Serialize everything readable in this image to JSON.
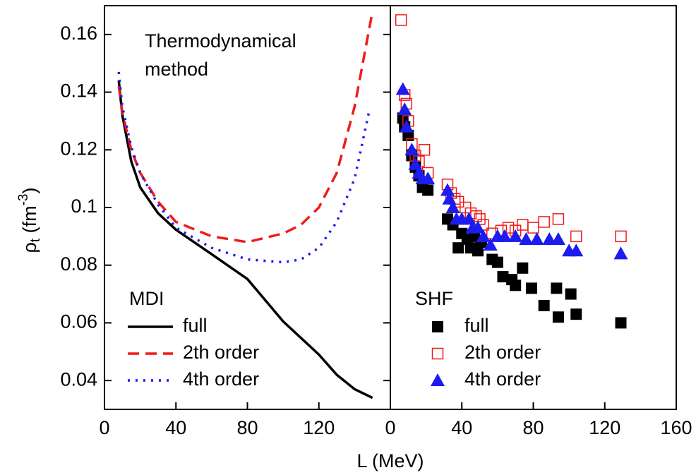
{
  "chart_data": [
    {
      "type": "line",
      "annotation": [
        "Thermodynamical",
        "method"
      ],
      "xlabel": "L (MeV)",
      "ylabel": [
        "ρ",
        "t",
        " (fm",
        "-3",
        ")"
      ],
      "legend_title": "MDI",
      "legend": "lower left",
      "xlim": [
        0,
        160
      ],
      "xticks": [
        0,
        40,
        80,
        120
      ],
      "ylim": [
        0.03,
        0.17
      ],
      "yticks": [
        0.04,
        0.06,
        0.08,
        0.1,
        0.12,
        0.14,
        0.16
      ],
      "series": [
        {
          "name": "full",
          "color": "#000000",
          "linestyle": "solid",
          "x": [
            8,
            10,
            15,
            20,
            30,
            40,
            60,
            80,
            100,
            120,
            130,
            140,
            150
          ],
          "values": [
            0.144,
            0.132,
            0.116,
            0.107,
            0.098,
            0.0923,
            0.0838,
            0.0752,
            0.0605,
            0.049,
            0.042,
            0.037,
            0.034
          ]
        },
        {
          "name": "2th order",
          "color": "#ee1c1c",
          "linestyle": "dashed",
          "x": [
            8,
            10,
            15,
            20,
            30,
            40,
            60,
            80,
            100,
            110,
            120,
            130,
            140,
            150
          ],
          "values": [
            0.142,
            0.133,
            0.12,
            0.112,
            0.102,
            0.095,
            0.09,
            0.088,
            0.091,
            0.094,
            0.1,
            0.112,
            0.135,
            0.168
          ]
        },
        {
          "name": "4th order",
          "color": "#1c1cee",
          "linestyle": "dotted",
          "x": [
            8,
            10,
            15,
            20,
            30,
            40,
            60,
            80,
            100,
            110,
            120,
            130,
            140,
            148
          ],
          "values": [
            0.147,
            0.135,
            0.121,
            0.112,
            0.101,
            0.093,
            0.086,
            0.082,
            0.081,
            0.082,
            0.086,
            0.095,
            0.11,
            0.133
          ]
        }
      ]
    },
    {
      "type": "scatter",
      "legend_title": "SHF",
      "legend": "lower left",
      "xlim": [
        0,
        160
      ],
      "xticks": [
        0,
        40,
        80,
        120,
        160
      ],
      "ylim": [
        0.03,
        0.17
      ],
      "series": [
        {
          "name": "full",
          "color": "#000000",
          "marker": "square-filled",
          "x": [
            7,
            8,
            10,
            12,
            14,
            16,
            18,
            21,
            32,
            35,
            38,
            40,
            43,
            45,
            47,
            49,
            51,
            57,
            60,
            63,
            68,
            70,
            74,
            79,
            86,
            93,
            94,
            101,
            104,
            129
          ],
          "values": [
            0.131,
            0.128,
            0.125,
            0.118,
            0.114,
            0.111,
            0.107,
            0.106,
            0.096,
            0.094,
            0.086,
            0.091,
            0.089,
            0.086,
            0.09,
            0.085,
            0.088,
            0.082,
            0.081,
            0.076,
            0.075,
            0.073,
            0.079,
            0.072,
            0.066,
            0.072,
            0.062,
            0.07,
            0.063,
            0.06
          ]
        },
        {
          "name": "2th order",
          "color": "#ee1c1c",
          "marker": "square-open",
          "x": [
            6,
            8,
            9,
            10,
            12,
            14,
            16,
            19,
            21,
            32,
            34,
            36,
            38,
            42,
            45,
            48,
            50,
            52,
            57,
            62,
            66,
            70,
            74,
            80,
            86,
            94,
            104,
            129
          ],
          "values": [
            0.165,
            0.139,
            0.136,
            0.13,
            0.122,
            0.118,
            0.116,
            0.12,
            0.112,
            0.108,
            0.105,
            0.103,
            0.102,
            0.1,
            0.098,
            0.097,
            0.096,
            0.094,
            0.091,
            0.092,
            0.093,
            0.092,
            0.094,
            0.093,
            0.095,
            0.096,
            0.09,
            0.09
          ]
        },
        {
          "name": "4th order",
          "color": "#1c1cee",
          "marker": "triangle",
          "x": [
            7,
            8,
            9,
            12,
            14,
            16,
            18,
            21,
            32,
            33,
            35,
            37,
            40,
            44,
            46,
            49,
            52,
            56,
            60,
            64,
            70,
            76,
            82,
            89,
            94,
            100,
            104,
            129
          ],
          "values": [
            0.141,
            0.134,
            0.128,
            0.12,
            0.115,
            0.112,
            0.11,
            0.11,
            0.106,
            0.103,
            0.1,
            0.096,
            0.096,
            0.096,
            0.093,
            0.093,
            0.09,
            0.087,
            0.09,
            0.09,
            0.09,
            0.089,
            0.089,
            0.089,
            0.089,
            0.085,
            0.085,
            0.084
          ]
        }
      ]
    }
  ]
}
